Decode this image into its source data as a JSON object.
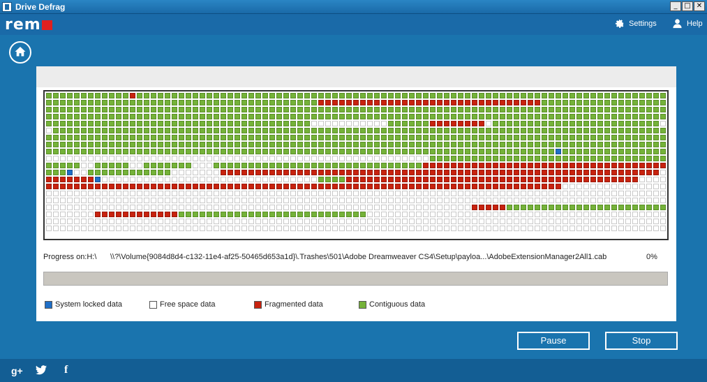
{
  "window": {
    "title": "Drive Defrag",
    "controls": [
      "_",
      "□",
      "✕"
    ]
  },
  "header": {
    "logo_text": "rem",
    "settings_label": "Settings",
    "help_label": "Help"
  },
  "progress": {
    "label": "Progress on:H:\\",
    "path": "\\\\?\\Volume{9084d8d4-c132-11e4-af25-50465d653a1d}\\.Trashes\\501\\Adobe Dreamweaver CS4\\Setup\\payloa...\\AdobeExtensionManager2All1.cab",
    "percent_text": "0%",
    "percent": 0
  },
  "legend": [
    {
      "label": "System locked data",
      "color": "#1f6fc7"
    },
    {
      "label": "Free space data",
      "color": "#ffffff"
    },
    {
      "label": "Fragmented data",
      "color": "#c8230f"
    },
    {
      "label": "Contiguous data",
      "color": "#75b239"
    }
  ],
  "buttons": {
    "pause": "Pause",
    "stop": "Stop"
  },
  "footer": {
    "social": [
      "g+",
      "twitter",
      "f"
    ]
  },
  "colors": {
    "accent": "#1a74ae",
    "contiguous": "#75b239",
    "fragmented": "#c8230f",
    "locked": "#1f6fc7",
    "free": "#ffffff"
  },
  "disk_map": {
    "columns": 89,
    "legend_keys": {
      "g": "Contiguous data",
      "r": "Fragmented data",
      "b": "System locked data",
      "w": "Free space data"
    },
    "rows": [
      "ggggggggggggrggggggggggggggggggggggggggggggggggggggggggggggggggggggggggggggggggggggggggggg",
      "gggggggggggggggggggggggggggggggggggggggrrrrrrrrrrrrrrrrrrrrrrrrrrrrrrrrggggggggggggggggggg",
      "ggggggggggggggggggggggggggggggggggggggggggggggggggggggggggggggggggggggggggggggggggggggggg",
      "ggggggggggggggggggggggggggggggggggggggggggggggggggggggggggggggggggggggggggggggggggggggggg",
      "ggggggggggggggggggggggggggggggggggggggwwwwwwwwwwwggggggrrrrrrrrwgggggggggggggggggggggggg",
      "wgggggggggggggggggggggggggggggggggggggggggggggggggggggggggggggggggggggggggggggggggggggggg",
      "ggggggggggggggggggggggggggggggggggggggggggggggggggggggggggggggggggggggggggggggggggggggggg",
      "ggggggggggggggggggggggggggggggggggggggggggggggggggggggggggggggggggggggggggggggggggggggggg",
      "gggggggggggggggggggggggggggggggggggggggggggggggggggggggggggggggggggggggggbgggggggggggggggg",
      "wwwwwwwwwwwwwwwwwwwwwwwwwwwwwwwwwwwwwwwwwwwwwwwwwwwwwwwgggggggggggggggggggggggggggggggggg",
      "gggggwwgggggwwgggggggwwwggggggggggggggggggggggggggggggrrrrrrrrrrrrrrrrrrrrrrrrrrrrrrrrrrr",
      "gggbwwggggggggggggwwwwwwwrrrrrrrrrrrrrrrrrrrrrrrrrrrrrrrrrrrrrrrrrrrrrrrrrrrrrrrrrrrrrrr",
      "rrrrrrrbwwwwwwwwwwwwwwwwwwwwwwwwwwwwwwwggggrrrrrrrrrrrrrrrrrrrrrrrrrrrrrrrrrrrrrrrrrrwwwww",
      "rrrrrrrrrrrrrrrrrrrrrrrrrrrrrrrrrrrrrrrrrrrrrrrrrrrrrrrrrrrrrrrrrrrrrrrrrrwwwwwwwwwwwwww",
      "wwwwwwwwwwwwwwwwwwwwwwwwwwwwwwwwwwwwwwwwwwwwwwwwwwwwwwwwwwwwwwwwwwwwwwwwwwwwwwwwwwwwwwwww",
      "wwwwwwwwwwwwwwwwwwwwwwwwwwwwwwwwwwwwwwwwwwwwwwwwwwwwwwwwwwwwwwwwwwwwwwwwwwwwwwwwwwwwwwwww",
      "wwwwwwwwwwwwwwwwwwwwwwwwwwwwwwwwwwwwwwwwwwwwwwwwwwwwwwwwwwwwwrrrrrgggggggggggggggggggggggggw",
      "wwwwwwwrrrrrrrrrrrrgggggggggggggggggggggggggggwwwwwwwwwwwwwwwwwwwwwwwwwwwwwwwwwwwwwwwwwwwww",
      "wwwwwwwwwwwwwwwwwwwwwwwwwwwwwwwwwwwwwwwwwwwwwwwwwwwwwwwwwwwwwwwwwwwwwwwwwwwwwwwwwwwwwwwww",
      "wwwwwwwwwwwwwwwwwwwwwwwwwwwwwwwwwwwwwwwwwwwwwwwwwwwwwwwwwwwwwwwwwwwwwwwwwwwwwwwwwwwwwwwww"
    ]
  }
}
